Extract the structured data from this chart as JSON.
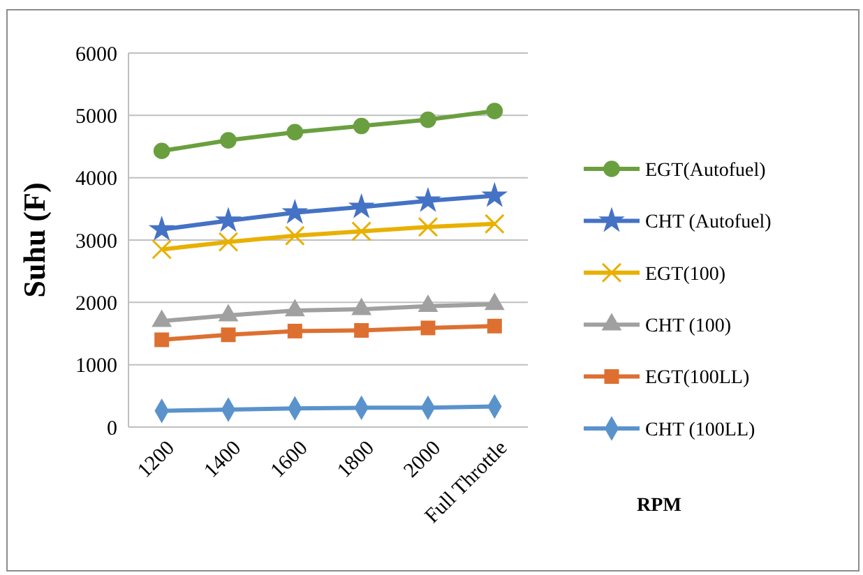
{
  "chart_data": {
    "type": "line",
    "annotations": [
      "RPM"
    ],
    "ylabel": "Suhu (F)",
    "categories": [
      "1200",
      "1400",
      "1600",
      "1800",
      "2000",
      "Full Throttle"
    ],
    "ylim": [
      0,
      6000
    ],
    "yticks": [
      0,
      1000,
      2000,
      3000,
      4000,
      5000,
      6000
    ],
    "grid": "y",
    "legend": "right",
    "line_style": "solid",
    "series": [
      {
        "name": "EGT(Autofuel)",
        "color": "#6a9f3f",
        "marker": "circle",
        "values": [
          4430,
          4600,
          4730,
          4830,
          4930,
          5070
        ]
      },
      {
        "name": "CHT (Autofuel)",
        "color": "#4472c4",
        "marker": "star",
        "values": [
          3170,
          3310,
          3440,
          3530,
          3630,
          3710
        ]
      },
      {
        "name": "EGT(100)",
        "color": "#e8b000",
        "marker": "cross",
        "values": [
          2850,
          2970,
          3070,
          3140,
          3210,
          3260
        ]
      },
      {
        "name": "CHT (100)",
        "color": "#a0a0a0",
        "marker": "triangle",
        "values": [
          1700,
          1790,
          1870,
          1890,
          1940,
          1970
        ]
      },
      {
        "name": "EGT(100LL)",
        "color": "#dd7030",
        "marker": "square",
        "values": [
          1400,
          1480,
          1540,
          1550,
          1590,
          1620
        ]
      },
      {
        "name": "CHT (100LL)",
        "color": "#5a93cc",
        "marker": "diamond",
        "values": [
          260,
          280,
          300,
          310,
          310,
          330
        ]
      }
    ]
  }
}
